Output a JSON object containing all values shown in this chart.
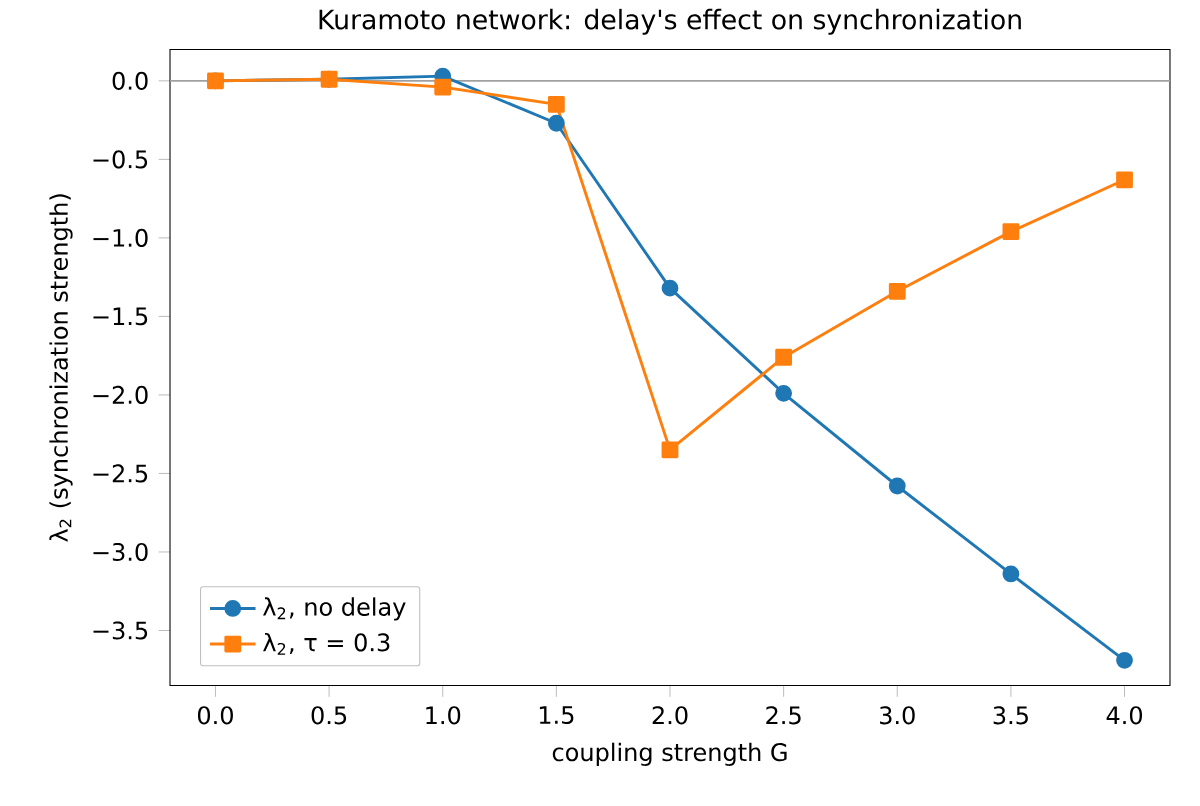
{
  "chart_data": {
    "type": "line",
    "title": "Kuramoto network: delay's effect on synchronization",
    "xlabel": "coupling strength G",
    "ylabel": "λ$_{2}$ (synchronization strength)",
    "x": [
      0,
      0.5,
      1.0,
      1.5,
      2.0,
      2.5,
      3.0,
      3.5,
      4.0
    ],
    "series": [
      {
        "name": "λ$_{2}$, no delay",
        "color": "#1f77b4",
        "marker": "circle",
        "values": [
          0,
          0.01,
          0.03,
          -0.27,
          -1.32,
          -1.99,
          -2.58,
          -3.14,
          -3.69
        ]
      },
      {
        "name": "λ$_{2}$, τ = 0.3",
        "color": "#ff7f0e",
        "marker": "square",
        "values": [
          0,
          0.01,
          -0.04,
          -0.15,
          -2.35,
          -1.76,
          -1.34,
          -0.96,
          -0.63
        ]
      }
    ],
    "xlim": [
      -0.2,
      4.2
    ],
    "ylim": [
      -3.85,
      0.2
    ],
    "xticks": [
      {
        "value": 0,
        "label": "0.0"
      },
      {
        "value": 0.5,
        "label": "0.5"
      },
      {
        "value": 1,
        "label": "1.0"
      },
      {
        "value": 1.5,
        "label": "1.5"
      },
      {
        "value": 2,
        "label": "2.0"
      },
      {
        "value": 2.5,
        "label": "2.5"
      },
      {
        "value": 3,
        "label": "3.0"
      },
      {
        "value": 3.5,
        "label": "3.5"
      },
      {
        "value": 4,
        "label": "4.0"
      }
    ],
    "yticks": [
      {
        "value": 0,
        "label": "0.0"
      },
      {
        "value": -0.5,
        "label": "−0.5"
      },
      {
        "value": -1,
        "label": "−1.0"
      },
      {
        "value": -1.5,
        "label": "−1.5"
      },
      {
        "value": -2,
        "label": "−2.0"
      },
      {
        "value": -2.5,
        "label": "−2.5"
      },
      {
        "value": -3,
        "label": "−3.0"
      },
      {
        "value": -3.5,
        "label": "−3.5"
      }
    ],
    "ref_lines": [
      {
        "axis": "y",
        "value": 0,
        "color": "#a0a0a0"
      }
    ],
    "grid": false,
    "legend": "bottom left"
  }
}
